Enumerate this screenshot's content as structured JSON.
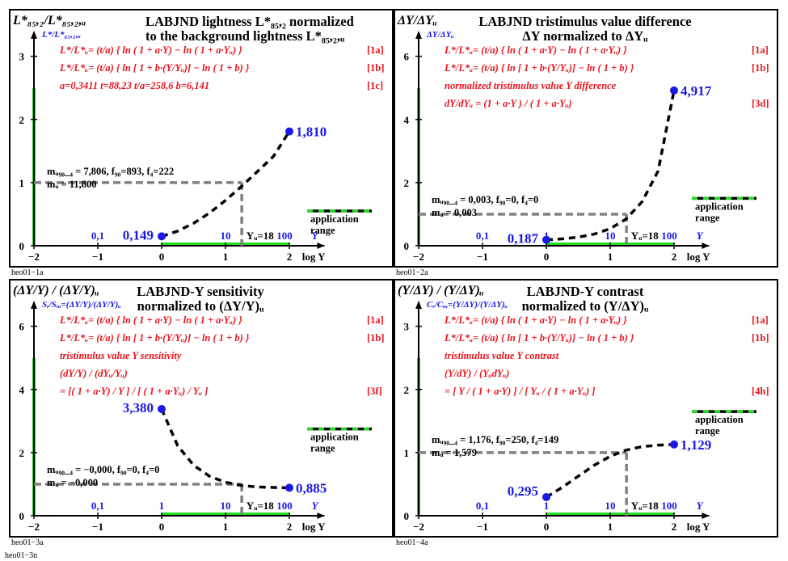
{
  "figure_code": "heo01−3n",
  "application_label": [
    "application",
    "range"
  ],
  "x_axis_label": "log Y",
  "x_tick_labels": [
    "−2",
    "−1",
    "0",
    "1",
    "2"
  ],
  "y_top_labels": [
    "0,1",
    "1",
    "10",
    "100",
    "Y"
  ],
  "yu_label": "Yᵤ=18",
  "colors": {
    "curve": "#000000",
    "points": "#1a1ae6",
    "formulas": "#e8141c",
    "range_green": "#22dd22",
    "reference_gray": "#808080"
  },
  "chart_data": [
    {
      "id": "heo01−1a",
      "type": "line",
      "title": [
        "LABJND lightness L*₈₅,₂ normalized",
        "to the background lightness L*₈₅,₂,ᵤ"
      ],
      "corner_title": "L*₈₅,₂/L*₈₅,₂,ᵤ",
      "ylabel": "L*/L*₈₅,₂,ᵤ",
      "xlabel": "log Y",
      "xlim": [
        -2,
        2.5
      ],
      "ylim": [
        0,
        3.2
      ],
      "y_ticks": [
        "0",
        "1",
        "2",
        "3"
      ],
      "formulas": [
        {
          "text": "L*/L*ᵤ= (t/a) { ln ( 1 + a·Y) − ln ( 1 + a·Yᵤ) }",
          "tag": "[1a]"
        },
        {
          "text": "L*/L*ᵤ= (t/a) { ln [ 1 + b·(Y/Yᵤ)] − ln ( 1 + b) }",
          "tag": "[1b]"
        },
        {
          "text": "a=0,3411     t=88,23      t/a=258,6    b=6,141",
          "tag": "[1c]"
        }
      ],
      "notes": [
        "mᵤ₉₀_₄ = 7,806, f₉₀=893, f₄=222",
        "mᵤ = 11,800"
      ],
      "x": [
        0,
        0.25,
        0.5,
        0.75,
        1,
        1.25,
        1.5,
        1.75,
        2
      ],
      "y": [
        0.149,
        0.232,
        0.356,
        0.52,
        0.718,
        0.94,
        1.175,
        1.414,
        1.81
      ],
      "end_points": [
        [
          0,
          0.149
        ],
        [
          2,
          1.81
        ]
      ],
      "end_labels": [
        "0,149",
        "1,810"
      ],
      "reference": {
        "log_yu": 1.255,
        "value": 1
      },
      "range_y": 0.55
    },
    {
      "id": "heo01−2a",
      "type": "line",
      "title": [
        "LABJND tristimulus value difference",
        "ΔY normalized to ΔYᵤ"
      ],
      "corner_title": "ΔY/ΔYᵤ",
      "ylabel": "ΔY/ΔYᵤ",
      "xlabel": "log Y",
      "xlim": [
        -2,
        2.5
      ],
      "ylim": [
        0,
        6.4
      ],
      "y_ticks": [
        "0",
        "2",
        "4",
        "6"
      ],
      "formulas": [
        {
          "text": "L*/L*ᵤ= (t/a) { ln ( 1 + a·Y) − ln ( 1 + a·Yᵤ) }",
          "tag": "[1a]"
        },
        {
          "text": "L*/L*ᵤ= (t/a) { ln [ 1 + b·(Y/Yᵤ)] − ln ( 1 + b) }",
          "tag": "[1b]"
        },
        {
          "text": "normalized tristimulus value Y difference",
          "tag": ""
        },
        {
          "text": "dY/dYᵤ = (1 + a·Y ) / ( 1 + a·Yᵤ)",
          "tag": "[3d]"
        }
      ],
      "notes": [
        "mᵤ₉₀_₄ = 0,003, f₉₀=0, f₄=0",
        "mᵤ = 0,003"
      ],
      "x": [
        0,
        0.25,
        0.5,
        0.75,
        1,
        1.25,
        1.5,
        1.75,
        2
      ],
      "y": [
        0.187,
        0.218,
        0.272,
        0.369,
        0.541,
        0.848,
        1.395,
        2.368,
        4.917
      ],
      "end_points": [
        [
          0,
          0.187
        ],
        [
          2,
          4.917
        ]
      ],
      "end_labels": [
        "0,187",
        "4,917"
      ],
      "reference": {
        "log_yu": 1.255,
        "value": 1
      },
      "range_y": 1.5
    },
    {
      "id": "heo01−3a",
      "type": "line",
      "title": [
        "LABJND-Y sensitivity",
        "normalized to (ΔY/Y)ᵤ"
      ],
      "corner_title": "(ΔY/Y) / (ΔY/Y)ᵤ",
      "ylabel": "Sᵣ/Sᵣᵤ=(ΔY/Y)/(ΔY/Y)ᵤ",
      "xlabel": "log Y",
      "xlim": [
        -2,
        2.5
      ],
      "ylim": [
        0,
        6.4
      ],
      "y_ticks": [
        "0",
        "2",
        "4",
        "6"
      ],
      "formulas": [
        {
          "text": "L*/L*ᵤ= (t/a) { ln ( 1 + a·Y) − ln ( 1 + a·Yᵤ) }",
          "tag": "[1a]"
        },
        {
          "text": "L*/L*ᵤ= (t/a) { ln [ 1 + b·(Y/Yᵤ)] − ln ( 1 + b) }",
          "tag": "[1b]"
        },
        {
          "text": "tristimulus value Y sensitivity",
          "tag": ""
        },
        {
          "text": "(dY/Y) / (dYᵤ/Yᵤ)",
          "tag": ""
        },
        {
          "text": "     = [( 1 + a·Y) / Y ] / [ ( 1 + a·Yᵤ) / Yᵤ ]",
          "tag": "[3f]"
        }
      ],
      "notes": [
        "mᵤ₉₀_₄ = −0,000, f₉₀=0, f₄=0",
        "mᵤ = −0,000"
      ],
      "x": [
        0,
        0.25,
        0.5,
        0.75,
        1,
        1.25,
        1.5,
        1.75,
        2
      ],
      "y": [
        3.38,
        2.22,
        1.6,
        1.25,
        1.06,
        0.96,
        0.91,
        0.895,
        0.885
      ],
      "end_points": [
        [
          0,
          3.38
        ],
        [
          2,
          0.885
        ]
      ],
      "end_labels": [
        "3,380",
        "0,885"
      ],
      "reference": {
        "log_yu": 1.255,
        "value": 1
      },
      "range_y": 2.75
    },
    {
      "id": "heo01−4a",
      "type": "line",
      "title": [
        "LABJND-Y contrast",
        "normalized to (Y/ΔY)ᵤ"
      ],
      "corner_title": "(Y/ΔY) / (Y/ΔY)ᵤ",
      "ylabel": "Cᵣ/Cᵣᵤ=(Y/ΔY)/(Y/ΔY)ᵤ",
      "xlabel": "log Y",
      "xlim": [
        -2,
        2.5
      ],
      "ylim": [
        0,
        3.2
      ],
      "y_ticks": [
        "0",
        "1",
        "2",
        "3"
      ],
      "formulas": [
        {
          "text": "L*/L*ᵤ= (t/a) { ln ( 1 + a·Y) − ln ( 1 + a·Yᵤ) }",
          "tag": "[1a]"
        },
        {
          "text": "L*/L*ᵤ= (t/a) { ln [ 1 + b·(Y/Yᵤ)] − ln ( 1 + b) }",
          "tag": "[1b]"
        },
        {
          "text": "tristimulus value Y contrast",
          "tag": ""
        },
        {
          "text": "(Y/dY) / (YᵤdYᵤ)",
          "tag": ""
        },
        {
          "text": "     = [ Y / ( 1 + a·Y) ] / [ Yᵤ / ( 1 + a·Yᵤ) ]",
          "tag": "[4h]"
        }
      ],
      "notes": [
        "mᵤ₉₀_₄ = 1,176, f₉₀=250, f₄=149",
        "mᵤ = 1,579"
      ],
      "x": [
        0,
        0.25,
        0.5,
        0.75,
        1,
        1.25,
        1.5,
        1.75,
        2
      ],
      "y": [
        0.295,
        0.451,
        0.626,
        0.8,
        0.941,
        1.04,
        1.094,
        1.118,
        1.129
      ],
      "end_points": [
        [
          0,
          0.295
        ],
        [
          2,
          1.129
        ]
      ],
      "end_labels": [
        "0,295",
        "1,129"
      ],
      "reference": {
        "log_yu": 1.255,
        "value": 1
      },
      "range_y": 1.65
    }
  ]
}
